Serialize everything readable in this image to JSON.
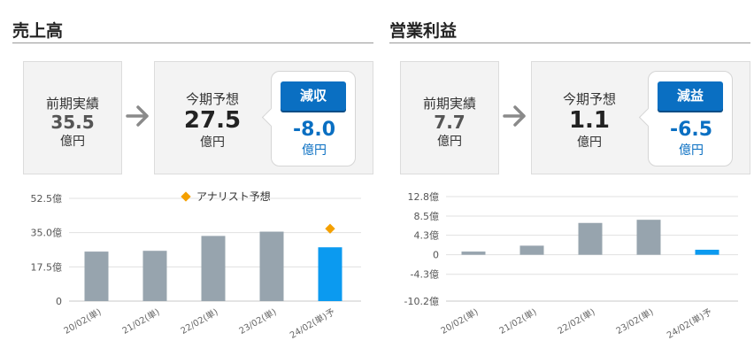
{
  "panels": [
    {
      "title": "売上高",
      "prev": {
        "label": "前期実績",
        "value": "35.5",
        "unit": "億円"
      },
      "forecast": {
        "label": "今期予想",
        "value": "27.5",
        "unit": "億円"
      },
      "change": {
        "badge": "減収",
        "value": "-8.0",
        "unit": "億円"
      },
      "chart_data": {
        "type": "bar",
        "categories": [
          "20/02(単)",
          "21/02(単)",
          "22/02(単)",
          "23/02(単)",
          "24/02(単)予"
        ],
        "values": [
          25.3,
          25.7,
          33.3,
          35.5,
          27.5
        ],
        "forecast_index": 4,
        "analyst_marker": {
          "index": 4,
          "value": 37.0
        },
        "legend": "アナリスト予想",
        "ytick_labels": [
          "52.5億",
          "35.0億",
          "17.5億",
          "0"
        ],
        "ytick_values": [
          52.5,
          35.0,
          17.5,
          0
        ],
        "ylim": [
          0,
          52.5
        ],
        "colors": {
          "bar": "#97a4ae",
          "forecast_bar": "#0b9af0",
          "marker": "#f4a000",
          "grid": "#e0e0e0"
        }
      }
    },
    {
      "title": "営業利益",
      "prev": {
        "label": "前期実績",
        "value": "7.7",
        "unit": "億円"
      },
      "forecast": {
        "label": "今期予想",
        "value": "1.1",
        "unit": "億円"
      },
      "change": {
        "badge": "減益",
        "value": "-6.5",
        "unit": "億円"
      },
      "chart_data": {
        "type": "bar",
        "categories": [
          "20/02(単)",
          "21/02(単)",
          "22/02(単)",
          "23/02(単)",
          "24/02(単)予"
        ],
        "values": [
          0.7,
          2.0,
          7.0,
          7.7,
          1.1
        ],
        "forecast_index": 4,
        "ytick_labels": [
          "12.8億",
          "8.5億",
          "4.3億",
          "0",
          "-4.3億",
          "-10.2億"
        ],
        "ytick_values": [
          12.8,
          8.5,
          4.3,
          0,
          -4.3,
          -10.2
        ],
        "ylim": [
          -10.2,
          12.8
        ],
        "colors": {
          "bar": "#97a4ae",
          "forecast_bar": "#0b9af0",
          "grid": "#e0e0e0"
        }
      }
    }
  ]
}
